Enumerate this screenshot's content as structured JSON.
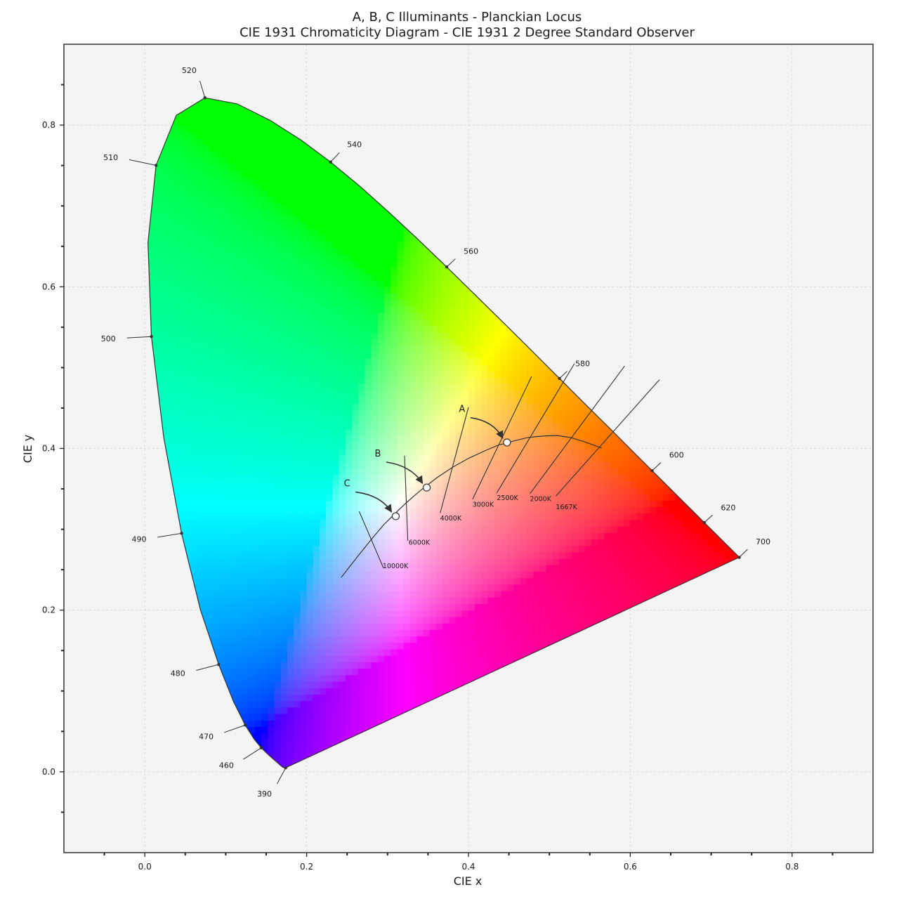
{
  "chart_data": {
    "type": "scatter",
    "title": "A, B, C Illuminants - Planckian Locus",
    "subtitle": "CIE 1931 Chromaticity Diagram - CIE 1931 2 Degree Standard Observer",
    "xlabel": "CIE x",
    "ylabel": "CIE y",
    "xlim": [
      -0.1,
      0.9
    ],
    "ylim": [
      -0.1,
      0.9
    ],
    "grid": true,
    "x_ticks": [
      0.0,
      0.2,
      0.4,
      0.6,
      0.8
    ],
    "y_ticks": [
      0.0,
      0.2,
      0.4,
      0.6,
      0.8
    ],
    "x_tick_labels": [
      "0.0",
      "0.2",
      "0.4",
      "0.6",
      "0.8"
    ],
    "y_tick_labels": [
      "0.0",
      "0.2",
      "0.4",
      "0.6",
      "0.8"
    ],
    "spectral_locus": [
      [
        0.1741,
        0.005
      ],
      [
        0.1728,
        0.0048
      ],
      [
        0.1703,
        0.0058
      ],
      [
        0.1666,
        0.0089
      ],
      [
        0.1644,
        0.0109
      ],
      [
        0.1611,
        0.0138
      ],
      [
        0.1566,
        0.0177
      ],
      [
        0.151,
        0.0227
      ],
      [
        0.144,
        0.0297
      ],
      [
        0.1355,
        0.0399
      ],
      [
        0.1241,
        0.0578
      ],
      [
        0.1096,
        0.0868
      ],
      [
        0.0913,
        0.1327
      ],
      [
        0.0687,
        0.2007
      ],
      [
        0.0454,
        0.295
      ],
      [
        0.0235,
        0.4127
      ],
      [
        0.0082,
        0.5384
      ],
      [
        0.0039,
        0.6548
      ],
      [
        0.0139,
        0.7502
      ],
      [
        0.0389,
        0.812
      ],
      [
        0.0743,
        0.8338
      ],
      [
        0.1142,
        0.8262
      ],
      [
        0.1547,
        0.8059
      ],
      [
        0.1929,
        0.7816
      ],
      [
        0.2296,
        0.7543
      ],
      [
        0.2658,
        0.7243
      ],
      [
        0.3016,
        0.6923
      ],
      [
        0.3373,
        0.6589
      ],
      [
        0.3731,
        0.6245
      ],
      [
        0.4087,
        0.5896
      ],
      [
        0.4441,
        0.5547
      ],
      [
        0.4788,
        0.5202
      ],
      [
        0.5125,
        0.4866
      ],
      [
        0.5448,
        0.4544
      ],
      [
        0.5752,
        0.4242
      ],
      [
        0.6029,
        0.3965
      ],
      [
        0.627,
        0.3725
      ],
      [
        0.6482,
        0.3514
      ],
      [
        0.6658,
        0.334
      ],
      [
        0.6801,
        0.3197
      ],
      [
        0.6915,
        0.3083
      ],
      [
        0.7006,
        0.2993
      ],
      [
        0.7079,
        0.292
      ],
      [
        0.714,
        0.2859
      ],
      [
        0.719,
        0.2809
      ],
      [
        0.723,
        0.277
      ],
      [
        0.726,
        0.274
      ],
      [
        0.7283,
        0.2717
      ],
      [
        0.73,
        0.27
      ],
      [
        0.7347,
        0.2653
      ]
    ],
    "wavelength_markers": [
      {
        "label": "390",
        "x": 0.1741,
        "y": 0.005,
        "lx": 0.157,
        "ly": -0.027
      },
      {
        "label": "460",
        "x": 0.144,
        "y": 0.0297,
        "lx": 0.11,
        "ly": 0.008
      },
      {
        "label": "470",
        "x": 0.1241,
        "y": 0.0578,
        "lx": 0.085,
        "ly": 0.044
      },
      {
        "label": "480",
        "x": 0.0913,
        "y": 0.1327,
        "lx": 0.05,
        "ly": 0.122
      },
      {
        "label": "490",
        "x": 0.0454,
        "y": 0.295,
        "lx": 0.002,
        "ly": 0.288
      },
      {
        "label": "500",
        "x": 0.0082,
        "y": 0.5384,
        "lx": -0.036,
        "ly": 0.536
      },
      {
        "label": "510",
        "x": 0.0139,
        "y": 0.7502,
        "lx": -0.033,
        "ly": 0.76
      },
      {
        "label": "520",
        "x": 0.0743,
        "y": 0.8338,
        "lx": 0.064,
        "ly": 0.868
      },
      {
        "label": "540",
        "x": 0.2296,
        "y": 0.7543,
        "lx": 0.25,
        "ly": 0.776
      },
      {
        "label": "560",
        "x": 0.3731,
        "y": 0.6245,
        "lx": 0.394,
        "ly": 0.644
      },
      {
        "label": "580",
        "x": 0.5125,
        "y": 0.4866,
        "lx": 0.532,
        "ly": 0.505
      },
      {
        "label": "600",
        "x": 0.627,
        "y": 0.3725,
        "lx": 0.648,
        "ly": 0.392
      },
      {
        "label": "620",
        "x": 0.6915,
        "y": 0.3083,
        "lx": 0.712,
        "ly": 0.327
      },
      {
        "label": "700",
        "x": 0.7347,
        "y": 0.2653,
        "lx": 0.755,
        "ly": 0.285
      }
    ],
    "planckian_locus": [
      [
        0.2427,
        0.2404
      ],
      [
        0.263,
        0.2664
      ],
      [
        0.2806,
        0.2883
      ],
      [
        0.295,
        0.3053
      ],
      [
        0.3135,
        0.3237
      ],
      [
        0.3221,
        0.3318
      ],
      [
        0.3324,
        0.341
      ],
      [
        0.3451,
        0.3516
      ],
      [
        0.3608,
        0.3636
      ],
      [
        0.3805,
        0.3768
      ],
      [
        0.4004,
        0.3879
      ],
      [
        0.42,
        0.397
      ],
      [
        0.4369,
        0.4041
      ],
      [
        0.4562,
        0.4093
      ],
      [
        0.474,
        0.4136
      ],
      [
        0.4916,
        0.4153
      ],
      [
        0.51,
        0.416
      ],
      [
        0.5269,
        0.4133
      ],
      [
        0.5428,
        0.4084
      ],
      [
        0.5647,
        0.4005
      ]
    ],
    "iso_temperature_lines": [
      {
        "label": "10000K",
        "start": [
          0.265,
          0.322
        ],
        "end": [
          0.295,
          0.252
        ],
        "lx": 0.294,
        "ly": 0.252
      },
      {
        "label": "6000K",
        "start": [
          0.321,
          0.391
        ],
        "end": [
          0.325,
          0.286
        ],
        "lx": 0.326,
        "ly": 0.281
      },
      {
        "label": "4000K",
        "start": [
          0.4,
          0.451
        ],
        "end": [
          0.365,
          0.32
        ],
        "lx": 0.365,
        "ly": 0.311
      },
      {
        "label": "3000K",
        "start": [
          0.478,
          0.489
        ],
        "end": [
          0.405,
          0.337
        ],
        "lx": 0.405,
        "ly": 0.328
      },
      {
        "label": "2500K",
        "start": [
          0.531,
          0.505
        ],
        "end": [
          0.435,
          0.345
        ],
        "lx": 0.435,
        "ly": 0.336
      },
      {
        "label": "2000K",
        "start": [
          0.593,
          0.502
        ],
        "end": [
          0.476,
          0.344
        ],
        "lx": 0.476,
        "ly": 0.335
      },
      {
        "label": "1667K",
        "start": [
          0.636,
          0.485
        ],
        "end": [
          0.508,
          0.341
        ],
        "lx": 0.508,
        "ly": 0.325
      }
    ],
    "illuminants": [
      {
        "name": "A",
        "x": 0.4476,
        "y": 0.4074,
        "lx": 0.392,
        "ly": 0.445
      },
      {
        "name": "B",
        "x": 0.3484,
        "y": 0.3516,
        "lx": 0.288,
        "ly": 0.39
      },
      {
        "name": "C",
        "x": 0.3101,
        "y": 0.3162,
        "lx": 0.25,
        "ly": 0.353
      }
    ],
    "primaries_gradient": {
      "red": "#ff0000",
      "green": "#00ff00",
      "blue": "#0000ff",
      "white": "#ffffff"
    },
    "colors": {
      "plot_background": "#f4f4f4",
      "locus_stroke": "#333333",
      "grid": "#d8d8d8"
    }
  }
}
